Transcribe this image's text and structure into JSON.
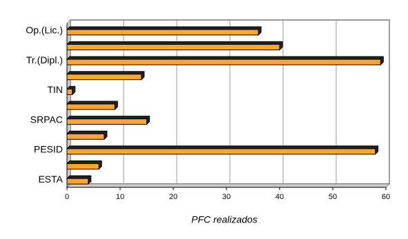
{
  "chart_data": {
    "type": "bar",
    "orientation": "horizontal",
    "categories": [
      "Op.(Lic.)",
      null,
      "Tr.(Dipl.)",
      null,
      "TIN",
      null,
      "SRPAC",
      null,
      "PESID",
      null,
      "ESTA"
    ],
    "values": [
      36,
      40,
      59,
      14,
      1,
      9,
      15,
      7,
      58,
      6,
      4
    ],
    "color": "#ffa532",
    "xlabel": "PFC realizados",
    "xlim": [
      0,
      60
    ],
    "xticks": [
      0,
      10,
      20,
      30,
      40,
      50,
      60
    ],
    "grid": true
  }
}
